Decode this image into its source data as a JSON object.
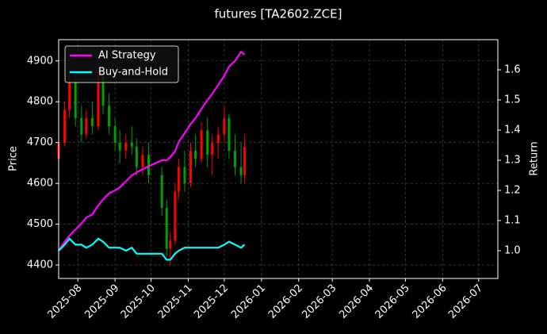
{
  "chart_data": {
    "type": "candlestick",
    "title": "futures [TA2602.ZCE]",
    "ylabel": "Price",
    "y2label": "Return",
    "up_color": "#ff0000",
    "down_color": "#00a000",
    "grid": true,
    "legend": "upper left",
    "x": [
      "2025-07-16",
      "2025-07-21",
      "2025-07-25",
      "2025-07-30",
      "2025-08-04",
      "2025-08-08",
      "2025-08-13",
      "2025-08-18",
      "2025-08-22",
      "2025-08-27",
      "2025-09-01",
      "2025-09-05",
      "2025-09-10",
      "2025-09-15",
      "2025-09-19",
      "2025-09-24",
      "2025-09-29",
      "2025-10-10",
      "2025-10-14",
      "2025-10-17",
      "2025-10-21",
      "2025-10-24",
      "2025-10-29",
      "2025-11-03",
      "2025-11-07",
      "2025-11-12",
      "2025-11-17",
      "2025-11-21",
      "2025-11-26",
      "2025-12-01",
      "2025-12-05",
      "2025-12-10",
      "2025-12-15",
      "2025-12-18"
    ],
    "open": [
      4660,
      4700,
      4780,
      4850,
      4760,
      4720,
      4760,
      4740,
      4860,
      4790,
      4740,
      4700,
      4680,
      4700,
      4690,
      4640,
      4670,
      4620,
      4540,
      4440,
      4460,
      4580,
      4640,
      4600,
      4680,
      4660,
      4730,
      4670,
      4700,
      4720,
      4760,
      4680,
      4640,
      4620
    ],
    "high": [
      4720,
      4800,
      4880,
      4870,
      4790,
      4780,
      4800,
      4880,
      4870,
      4820,
      4760,
      4730,
      4720,
      4740,
      4710,
      4690,
      4700,
      4640,
      4560,
      4480,
      4600,
      4660,
      4680,
      4700,
      4720,
      4750,
      4760,
      4720,
      4740,
      4790,
      4770,
      4720,
      4700,
      4720
    ],
    "low": [
      4640,
      4690,
      4760,
      4740,
      4700,
      4710,
      4720,
      4730,
      4770,
      4720,
      4680,
      4650,
      4660,
      4670,
      4620,
      4620,
      4600,
      4520,
      4420,
      4400,
      4450,
      4560,
      4580,
      4590,
      4640,
      4650,
      4640,
      4620,
      4660,
      4700,
      4660,
      4620,
      4600,
      4600
    ],
    "close": [
      4700,
      4780,
      4850,
      4760,
      4720,
      4760,
      4740,
      4860,
      4790,
      4740,
      4700,
      4680,
      4700,
      4690,
      4640,
      4670,
      4620,
      4540,
      4440,
      4460,
      4580,
      4640,
      4600,
      4680,
      4660,
      4730,
      4670,
      4700,
      4720,
      4760,
      4680,
      4640,
      4620,
      4690
    ],
    "series": [
      {
        "name": "AI Strategy",
        "color": "#ff00ff",
        "axis": "y2",
        "values": [
          1.0,
          1.03,
          1.05,
          1.07,
          1.09,
          1.11,
          1.12,
          1.15,
          1.17,
          1.19,
          1.2,
          1.21,
          1.23,
          1.25,
          1.26,
          1.27,
          1.28,
          1.3,
          1.3,
          1.31,
          1.33,
          1.36,
          1.39,
          1.42,
          1.44,
          1.47,
          1.5,
          1.52,
          1.55,
          1.58,
          1.61,
          1.63,
          1.66,
          1.65
        ]
      },
      {
        "name": "Buy-and-Hold",
        "color": "#00ffff",
        "axis": "y2",
        "values": [
          1.0,
          1.02,
          1.04,
          1.02,
          1.02,
          1.01,
          1.02,
          1.04,
          1.03,
          1.01,
          1.01,
          1.01,
          1.0,
          1.01,
          0.99,
          0.99,
          0.99,
          0.99,
          0.97,
          0.97,
          0.99,
          1.0,
          1.01,
          1.01,
          1.01,
          1.01,
          1.01,
          1.01,
          1.01,
          1.02,
          1.03,
          1.02,
          1.01,
          1.02
        ]
      }
    ],
    "xlim": [
      "2025-07-16",
      "2026-07-17"
    ],
    "xticks": [
      {
        "value": "2025-08-01",
        "label": "2025-08"
      },
      {
        "value": "2025-09-01",
        "label": "2025-09"
      },
      {
        "value": "2025-10-01",
        "label": "2025-10"
      },
      {
        "value": "2025-11-01",
        "label": "2025-11"
      },
      {
        "value": "2025-12-01",
        "label": "2025-12"
      },
      {
        "value": "2026-01-01",
        "label": "2026-01"
      },
      {
        "value": "2026-02-01",
        "label": "2026-02"
      },
      {
        "value": "2026-03-01",
        "label": "2026-03"
      },
      {
        "value": "2026-04-01",
        "label": "2026-04"
      },
      {
        "value": "2026-05-01",
        "label": "2026-05"
      },
      {
        "value": "2026-06-01",
        "label": "2026-06"
      },
      {
        "value": "2026-07-01",
        "label": "2026-07"
      }
    ],
    "ylim": [
      4367,
      4952
    ],
    "yticks": [
      4400,
      4500,
      4600,
      4700,
      4800,
      4900
    ],
    "y2lim": [
      0.908,
      1.7
    ],
    "y2ticks": [
      {
        "value": 1,
        "label": "1.0"
      },
      1.1,
      1.2,
      1.3,
      1.4,
      1.5,
      1.6
    ]
  }
}
